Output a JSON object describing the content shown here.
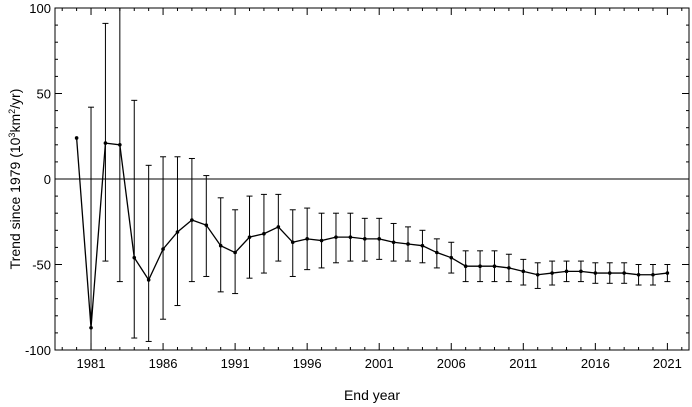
{
  "chart_data": {
    "type": "line",
    "xlabel": "End year",
    "ylabel_main": "Trend since 1979 (10",
    "ylabel_sup": "3",
    "ylabel_rest": "km",
    "ylabel_sup2": "2",
    "ylabel_end": "/yr)",
    "xlim": [
      1978.5,
      2022.5
    ],
    "ylim": [
      -100,
      100
    ],
    "x_ticks": [
      1981,
      1986,
      1991,
      1996,
      2001,
      2006,
      2011,
      2016,
      2021
    ],
    "x_tick_labels": [
      "1981",
      "1986",
      "1991",
      "1996",
      "2001",
      "2006",
      "2011",
      "2016",
      "2021"
    ],
    "y_ticks": [
      -100,
      -50,
      0,
      50,
      100
    ],
    "y_tick_labels": [
      "-100",
      "-50",
      "0",
      "50",
      "100"
    ],
    "reference_line": 0,
    "grid": false,
    "series": [
      {
        "x": [
          1980,
          1981,
          1982,
          1983,
          1984,
          1985,
          1986,
          1987,
          1988,
          1989,
          1990,
          1991,
          1992,
          1993,
          1994,
          1995,
          1996,
          1997,
          1998,
          1999,
          2000,
          2001,
          2002,
          2003,
          2004,
          2005,
          2006,
          2007,
          2008,
          2009,
          2010,
          2011,
          2012,
          2013,
          2014,
          2015,
          2016,
          2017,
          2018,
          2019,
          2020,
          2021
        ],
        "y": [
          24,
          -87,
          21,
          20,
          -46,
          -59,
          -41,
          -31,
          -24,
          -27,
          -39,
          -43,
          -34,
          -32,
          -28,
          -37,
          -35,
          -36,
          -34,
          -34,
          -35,
          -35,
          -37,
          -38,
          -39,
          -43,
          -46,
          -51,
          -51,
          -51,
          -52,
          -54,
          -56,
          -55,
          -54,
          -54,
          -55,
          -55,
          -55,
          -56,
          -56,
          -55
        ],
        "y_low": [
          24,
          -120,
          -48,
          -60,
          -93,
          -95,
          -82,
          -74,
          -60,
          -57,
          -66,
          -67,
          -58,
          -55,
          -48,
          -57,
          -53,
          -52,
          -49,
          -48,
          -48,
          -47,
          -48,
          -48,
          -49,
          -52,
          -55,
          -60,
          -60,
          -60,
          -60,
          -62,
          -64,
          -62,
          -60,
          -60,
          -61,
          -61,
          -61,
          -62,
          -62,
          -60
        ],
        "y_high": [
          24,
          42,
          91,
          100,
          46,
          8,
          13,
          13,
          12,
          2,
          -11,
          -18,
          -10,
          -9,
          -9,
          -18,
          -17,
          -20,
          -20,
          -20,
          -23,
          -23,
          -26,
          -28,
          -30,
          -35,
          -37,
          -42,
          -42,
          -42,
          -44,
          -47,
          -49,
          -48,
          -48,
          -48,
          -49,
          -49,
          -49,
          -50,
          -50,
          -50
        ]
      }
    ]
  }
}
